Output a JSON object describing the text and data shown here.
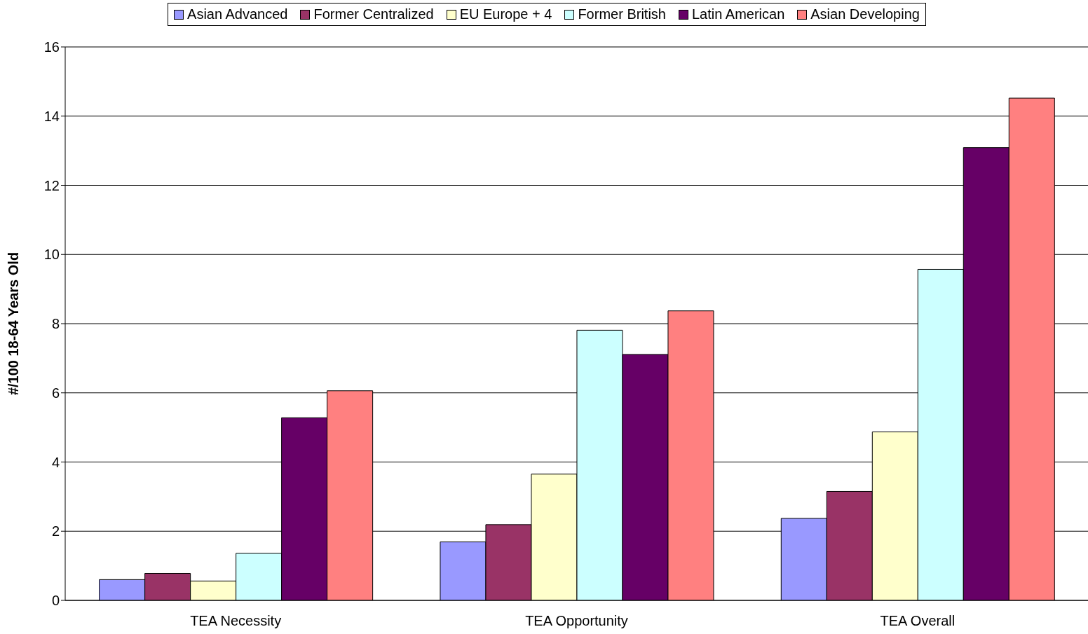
{
  "chart_data": {
    "type": "bar",
    "categories": [
      "TEA Necessity",
      "TEA Opportunity",
      "TEA Overall"
    ],
    "ylabel": "#/100 18-64 Years Old",
    "ylim": [
      0,
      16
    ],
    "yticks": [
      0,
      2,
      4,
      6,
      8,
      10,
      12,
      14,
      16
    ],
    "grid": "y",
    "legend": "top",
    "series": [
      {
        "name": "Asian Advanced",
        "color": "#9999ff",
        "values": [
          0.6,
          1.69,
          2.37
        ]
      },
      {
        "name": "Former Centralized",
        "color": "#993366",
        "values": [
          0.78,
          2.19,
          3.15
        ]
      },
      {
        "name": "EU Europe + 4",
        "color": "#ffffcc",
        "values": [
          0.56,
          3.65,
          4.87
        ]
      },
      {
        "name": "Former British",
        "color": "#ccffff",
        "values": [
          1.36,
          7.81,
          9.57
        ]
      },
      {
        "name": "Latin American",
        "color": "#660066",
        "values": [
          5.28,
          7.11,
          13.09
        ]
      },
      {
        "name": "Asian Developing",
        "color": "#ff8080",
        "values": [
          6.06,
          8.37,
          14.52
        ]
      }
    ]
  }
}
